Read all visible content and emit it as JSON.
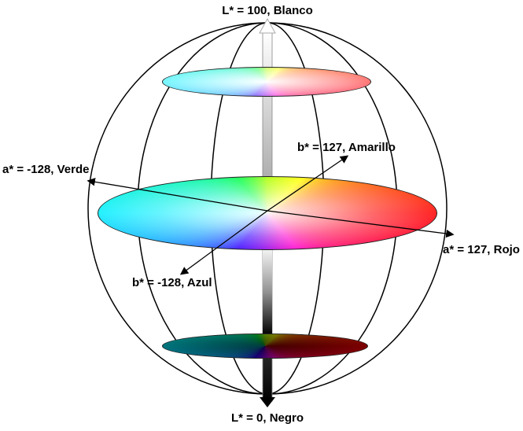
{
  "labels": {
    "l_top": "L* = 100, Blanco",
    "l_bottom": "L* = 0, Negro",
    "a_negative": "a* = -128, Verde",
    "a_positive": "a* = 127, Rojo",
    "b_positive": "b* = 127, Amarillo",
    "b_negative": "b* = -128, Azul"
  }
}
